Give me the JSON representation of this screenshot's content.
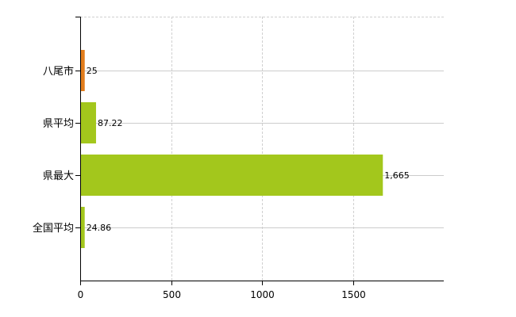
{
  "chart_data": {
    "type": "bar",
    "orientation": "horizontal",
    "categories": [
      "八尾市",
      "県平均",
      "県最大",
      "全国平均"
    ],
    "values": [
      25,
      87.22,
      1665,
      24.86
    ],
    "data_labels": [
      "25",
      "87.22",
      "1,665",
      "24.86"
    ],
    "colors": [
      "#e27d1c",
      "#a3c71c",
      "#a3c71c",
      "#a3c71c"
    ],
    "xlim": [
      0,
      2000
    ],
    "xticks": [
      "0",
      "500",
      "1000",
      "1500"
    ],
    "xtick_values": [
      0,
      500,
      1000,
      1500
    ],
    "grid": true,
    "title": "",
    "xlabel": "",
    "ylabel": ""
  }
}
